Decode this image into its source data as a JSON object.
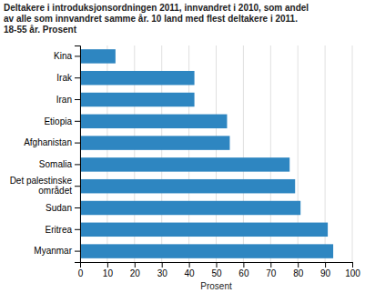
{
  "chart_data": {
    "type": "bar",
    "orientation": "horizontal",
    "title": "Deltakere i introduksjonsordningen 2011, innvandret i 2010, som andel\nav alle som innvandret samme år. 10 land med flest deltakere i 2011.\n18-55 år. Prosent",
    "categories": [
      "Myanmar",
      "Eritrea",
      "Sudan",
      "Det palestinske\nområdet",
      "Somalia",
      "Afghanistan",
      "Etiopia",
      "Iran",
      "Irak",
      "Kina"
    ],
    "values": [
      93,
      91,
      81,
      79,
      77,
      55,
      54,
      42,
      42,
      13
    ],
    "color": "#2e86c1",
    "xlabel": "Prosent",
    "xlim": [
      0,
      100
    ],
    "xticks": [
      0,
      10,
      20,
      30,
      40,
      50,
      60,
      70,
      80,
      90,
      100
    ],
    "grid": true
  }
}
